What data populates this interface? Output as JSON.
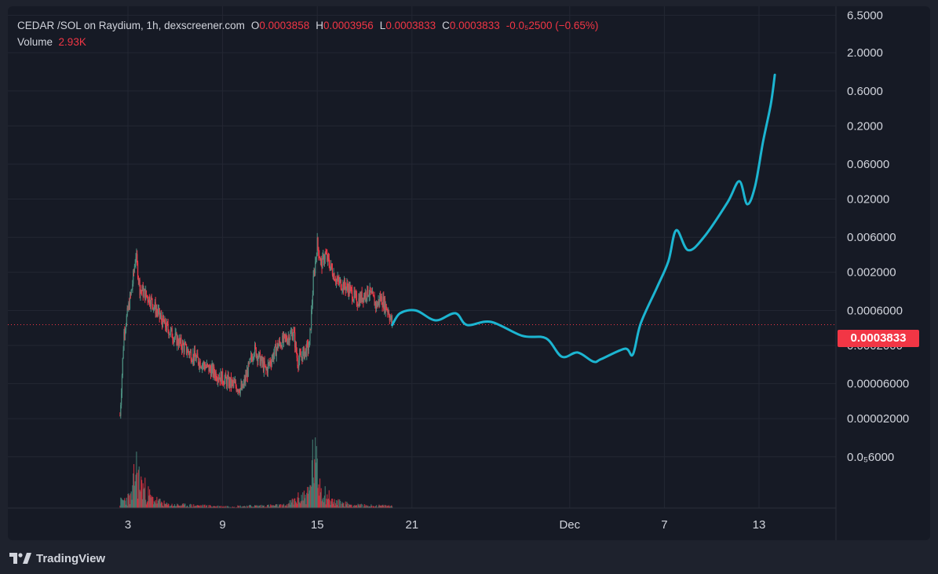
{
  "legend": {
    "symbol": "CEDAR /SOL on Raydium, 1h, dexscreener.com",
    "o_label": "O",
    "o_value": "0.0003858",
    "h_label": "H",
    "h_value": "0.0003956",
    "l_label": "L",
    "l_value": "0.0003833",
    "c_label": "C",
    "c_value": "0.0003833",
    "change": "-0.0₅2500 (−0.65%)",
    "volume_label": "Volume",
    "volume_value": "2.93K"
  },
  "price_tag": "0.0003833",
  "brand": {
    "name": "TradingView",
    "icon": "tradingview-logo-icon"
  },
  "colors": {
    "background": "#161a25",
    "grid": "#232733",
    "up": "#4b8d7f",
    "down": "#f23645",
    "projection": "#1cb5d1",
    "text": "#d1d4dc"
  },
  "chart_data": {
    "type": "candlestick",
    "scale": "log",
    "timeframe": "1h",
    "y_ticks": [
      "6.5000",
      "2.0000",
      "0.6000",
      "0.2000",
      "0.06000",
      "0.02000",
      "0.006000",
      "0.002000",
      "0.0006000",
      "0.0002000",
      "0.00006000",
      "0.00002000",
      "0.0₅6000"
    ],
    "x_ticks": [
      "3",
      "9",
      "15",
      "21",
      "Dec",
      "7",
      "13"
    ],
    "ylim": [
      3.3e-06,
      8
    ],
    "last_price": 0.0003833,
    "price_path": [
      {
        "x": "Nov 2 12:00",
        "y": 2.2e-05
      },
      {
        "x": "Nov 2 18:00",
        "y": 0.0003
      },
      {
        "x": "Nov 3 06:00",
        "y": 0.0012
      },
      {
        "x": "Nov 3 12:00",
        "y": 0.0035
      },
      {
        "x": "Nov 3 18:00",
        "y": 0.0012
      },
      {
        "x": "Nov 4 12:00",
        "y": 0.0008
      },
      {
        "x": "Nov 5 06:00",
        "y": 0.0004
      },
      {
        "x": "Nov 6 00:00",
        "y": 0.00025
      },
      {
        "x": "Nov 7 00:00",
        "y": 0.00015
      },
      {
        "x": "Nov 8 00:00",
        "y": 0.0001
      },
      {
        "x": "Nov 9 06:00",
        "y": 6.5e-05
      },
      {
        "x": "Nov 10 06:00",
        "y": 5e-05
      },
      {
        "x": "Nov 11 00:00",
        "y": 0.00018
      },
      {
        "x": "Nov 11 18:00",
        "y": 9e-05
      },
      {
        "x": "Nov 12 12:00",
        "y": 0.0002
      },
      {
        "x": "Nov 13 12:00",
        "y": 0.0003
      },
      {
        "x": "Nov 13 18:00",
        "y": 0.00012
      },
      {
        "x": "Nov 14 12:00",
        "y": 0.0002
      },
      {
        "x": "Nov 14 18:00",
        "y": 0.0015
      },
      {
        "x": "Nov 15 00:00",
        "y": 0.005
      },
      {
        "x": "Nov 15 06:00",
        "y": 0.0025
      },
      {
        "x": "Nov 15 12:00",
        "y": 0.0035
      },
      {
        "x": "Nov 16 06:00",
        "y": 0.0015
      },
      {
        "x": "Nov 17 00:00",
        "y": 0.0012
      },
      {
        "x": "Nov 17 12:00",
        "y": 0.0008
      },
      {
        "x": "Nov 18 06:00",
        "y": 0.0011
      },
      {
        "x": "Nov 18 18:00",
        "y": 0.0007
      },
      {
        "x": "Nov 19 00:00",
        "y": 0.0009
      },
      {
        "x": "Nov 19 12:00",
        "y": 0.0006
      },
      {
        "x": "Nov 19 18:00",
        "y": 0.00038
      }
    ],
    "volume": [
      {
        "x": "Nov 2 12:00",
        "v": 0.12
      },
      {
        "x": "Nov 3 06:00",
        "v": 0.22
      },
      {
        "x": "Nov 3 12:00",
        "v": 0.8
      },
      {
        "x": "Nov 3 18:00",
        "v": 0.5
      },
      {
        "x": "Nov 4 12:00",
        "v": 0.18
      },
      {
        "x": "Nov 5 12:00",
        "v": 0.06
      },
      {
        "x": "Nov 7 00:00",
        "v": 0.05
      },
      {
        "x": "Nov 9 00:00",
        "v": 0.03
      },
      {
        "x": "Nov 11 00:00",
        "v": 0.04
      },
      {
        "x": "Nov 13 00:00",
        "v": 0.05
      },
      {
        "x": "Nov 14 12:00",
        "v": 0.3
      },
      {
        "x": "Nov 14 18:00",
        "v": 1.0
      },
      {
        "x": "Nov 15 06:00",
        "v": 0.4
      },
      {
        "x": "Nov 16 00:00",
        "v": 0.12
      },
      {
        "x": "Nov 17 12:00",
        "v": 0.05
      },
      {
        "x": "Nov 19 00:00",
        "v": 0.04
      }
    ],
    "projection": [
      {
        "x": "Nov 19 18:00",
        "y": 0.00038
      },
      {
        "x": "Nov 20 06:00",
        "y": 0.00055
      },
      {
        "x": "Nov 21 06:00",
        "y": 0.0006
      },
      {
        "x": "Nov 22 12:00",
        "y": 0.00044
      },
      {
        "x": "Nov 23 18:00",
        "y": 0.00055
      },
      {
        "x": "Nov 24 12:00",
        "y": 0.00038
      },
      {
        "x": "Nov 26 00:00",
        "y": 0.00042
      },
      {
        "x": "Nov 28 00:00",
        "y": 0.00027
      },
      {
        "x": "Nov 29 12:00",
        "y": 0.00025
      },
      {
        "x": "Nov 30 12:00",
        "y": 0.00014
      },
      {
        "x": "Dec 1 12:00",
        "y": 0.00016
      },
      {
        "x": "Dec 2 12:00",
        "y": 0.00012
      },
      {
        "x": "Dec 3 00:00",
        "y": 0.00013
      },
      {
        "x": "Dec 4 12:00",
        "y": 0.00018
      },
      {
        "x": "Dec 5 00:00",
        "y": 0.00015
      },
      {
        "x": "Dec 5 12:00",
        "y": 0.0004
      },
      {
        "x": "Dec 6 12:00",
        "y": 0.0012
      },
      {
        "x": "Dec 7 06:00",
        "y": 0.0028
      },
      {
        "x": "Dec 7 18:00",
        "y": 0.0075
      },
      {
        "x": "Dec 8 12:00",
        "y": 0.004
      },
      {
        "x": "Dec 9 12:00",
        "y": 0.006
      },
      {
        "x": "Dec 11 00:00",
        "y": 0.018
      },
      {
        "x": "Dec 11 18:00",
        "y": 0.035
      },
      {
        "x": "Dec 12 06:00",
        "y": 0.017
      },
      {
        "x": "Dec 12 18:00",
        "y": 0.03
      },
      {
        "x": "Dec 13 06:00",
        "y": 0.12
      },
      {
        "x": "Dec 13 18:00",
        "y": 0.4
      },
      {
        "x": "Dec 14 00:00",
        "y": 1.0
      }
    ]
  }
}
